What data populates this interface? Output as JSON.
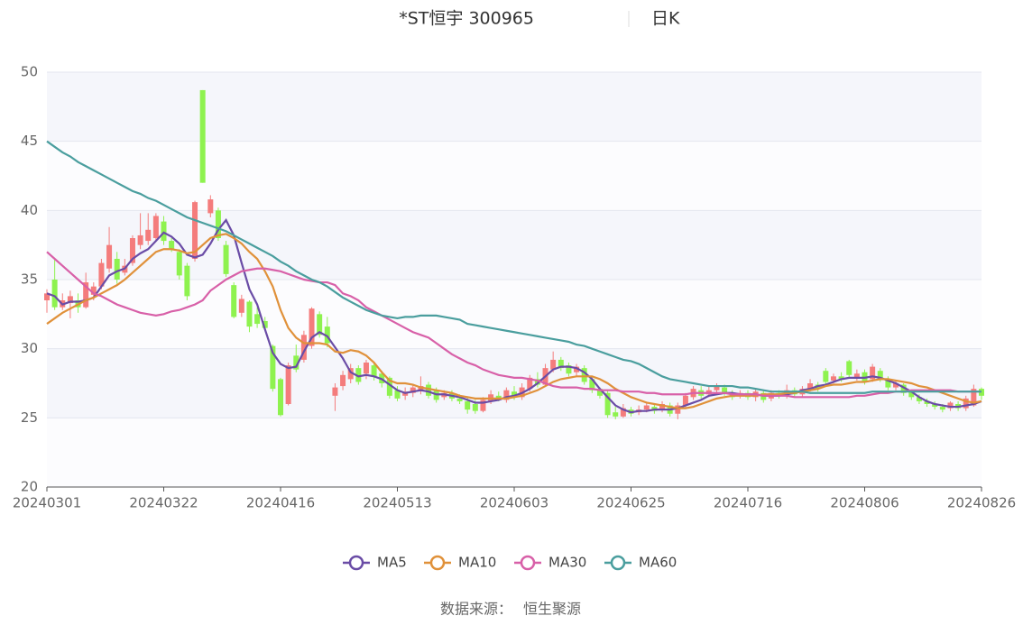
{
  "chart_data": {
    "type": "candlestick",
    "title": "*ST恒宇 300965",
    "period": "日K",
    "source_label": "数据来源：",
    "source": "恒生聚源",
    "categories": [
      "20240301",
      null,
      null,
      null,
      null,
      null,
      null,
      null,
      null,
      null,
      null,
      null,
      null,
      null,
      null,
      "20240322",
      null,
      null,
      null,
      null,
      null,
      null,
      null,
      null,
      null,
      null,
      null,
      null,
      null,
      null,
      "20240416",
      null,
      null,
      null,
      null,
      null,
      null,
      null,
      null,
      null,
      null,
      null,
      null,
      null,
      null,
      "20240513",
      null,
      null,
      null,
      null,
      null,
      null,
      null,
      null,
      null,
      null,
      null,
      null,
      null,
      null,
      "20240603",
      null,
      null,
      null,
      null,
      null,
      null,
      null,
      null,
      null,
      null,
      null,
      null,
      null,
      null,
      "20240625",
      null,
      null,
      null,
      null,
      null,
      null,
      null,
      null,
      null,
      null,
      null,
      null,
      null,
      null,
      "20240716",
      null,
      null,
      null,
      null,
      null,
      null,
      null,
      null,
      null,
      null,
      null,
      null,
      null,
      null,
      "20240806",
      null,
      null,
      null,
      null,
      null,
      null,
      null,
      null,
      null,
      null,
      null,
      null,
      null,
      null,
      "20240826"
    ],
    "open": [
      33.5,
      35.0,
      33.0,
      33.3,
      33.5,
      33.0,
      33.9,
      34.5,
      35.8,
      36.5,
      35.5,
      36.2,
      37.5,
      37.8,
      38.0,
      39.2,
      37.8,
      37.0,
      36.0,
      36.5,
      48.7,
      39.8,
      40.0,
      37.5,
      34.6,
      32.6,
      33.4,
      32.5,
      32.0,
      30.2,
      27.8,
      26.0,
      29.5,
      29.2,
      30.2,
      32.5,
      31.6,
      26.6,
      27.3,
      27.8,
      28.6,
      28.2,
      28.8,
      28.2,
      27.9,
      27.0,
      26.6,
      26.8,
      27.0,
      27.4,
      27.0,
      26.5,
      26.8,
      26.4,
      26.2,
      26.0,
      25.5,
      26.2,
      26.6,
      26.3,
      26.9,
      26.5,
      27.1,
      27.8,
      27.4,
      28.5,
      29.2,
      28.8,
      28.3,
      28.6,
      27.8,
      27.1,
      26.8,
      25.4,
      25.1,
      25.6,
      25.4,
      25.6,
      25.8,
      25.6,
      25.9,
      25.3,
      25.9,
      26.5,
      27.0,
      26.7,
      27.0,
      27.2,
      26.8,
      26.6,
      26.8,
      26.5,
      26.8,
      26.4,
      26.8,
      26.6,
      27.0,
      26.7,
      27.1,
      27.4,
      28.4,
      27.7,
      28.0,
      29.1,
      27.9,
      28.3,
      27.8,
      28.4,
      27.8,
      27.2,
      27.4,
      26.9,
      26.5,
      26.2,
      26.0,
      25.8,
      25.7,
      26.0,
      25.7,
      25.9,
      27.1
    ],
    "close": [
      34.0,
      33.0,
      33.5,
      33.8,
      33.0,
      34.8,
      34.5,
      36.2,
      37.5,
      35.0,
      36.0,
      38.0,
      38.2,
      38.6,
      39.6,
      37.8,
      37.2,
      35.3,
      33.8,
      40.6,
      42.0,
      40.8,
      38.0,
      35.4,
      32.3,
      33.6,
      31.6,
      31.8,
      31.5,
      27.1,
      25.2,
      28.8,
      28.5,
      31.0,
      32.9,
      31.0,
      30.4,
      27.2,
      28.1,
      28.6,
      27.6,
      29.0,
      28.0,
      27.5,
      26.6,
      26.4,
      26.9,
      27.2,
      27.3,
      26.6,
      26.3,
      26.8,
      26.4,
      26.2,
      25.6,
      25.5,
      26.3,
      26.7,
      26.4,
      27.0,
      26.5,
      27.2,
      27.9,
      27.4,
      28.6,
      29.2,
      28.6,
      28.2,
      28.7,
      27.6,
      27.0,
      26.6,
      25.2,
      25.1,
      25.7,
      25.3,
      25.6,
      25.9,
      25.5,
      26.0,
      25.3,
      25.9,
      26.6,
      27.1,
      26.6,
      27.0,
      27.3,
      26.8,
      26.5,
      26.8,
      26.5,
      26.9,
      26.3,
      26.8,
      26.6,
      27.0,
      26.7,
      27.1,
      27.5,
      27.1,
      27.6,
      28.0,
      27.8,
      28.1,
      28.2,
      27.6,
      28.7,
      27.8,
      27.2,
      27.5,
      26.8,
      26.5,
      26.2,
      26.0,
      25.8,
      25.6,
      26.1,
      25.7,
      26.4,
      27.1,
      26.6
    ],
    "low": [
      32.6,
      32.8,
      32.8,
      32.2,
      32.6,
      32.9,
      33.5,
      34.3,
      35.5,
      34.7,
      35.3,
      36.0,
      37.2,
      37.5,
      37.8,
      37.5,
      37.0,
      35.0,
      33.5,
      36.3,
      42.0,
      39.5,
      37.8,
      35.2,
      32.2,
      32.3,
      31.2,
      31.5,
      31.3,
      26.9,
      25.1,
      25.9,
      28.3,
      29.0,
      30.0,
      30.8,
      30.1,
      25.5,
      27.0,
      27.5,
      27.4,
      27.8,
      27.7,
      27.2,
      26.4,
      26.2,
      26.3,
      26.5,
      26.7,
      26.4,
      26.1,
      26.3,
      26.2,
      26.0,
      25.3,
      25.3,
      25.4,
      26.0,
      26.2,
      26.1,
      26.3,
      26.3,
      26.9,
      27.2,
      27.3,
      28.3,
      28.4,
      28.0,
      28.0,
      27.4,
      26.8,
      26.4,
      25.0,
      24.9,
      25.0,
      25.1,
      25.2,
      25.4,
      25.3,
      25.4,
      25.1,
      24.9,
      25.7,
      26.3,
      26.4,
      26.5,
      26.8,
      26.6,
      26.3,
      26.4,
      26.3,
      26.2,
      26.1,
      26.2,
      26.4,
      26.4,
      26.5,
      26.5,
      26.9,
      26.9,
      27.4,
      27.5,
      27.6,
      27.9,
      27.7,
      27.4,
      27.6,
      27.6,
      27.0,
      27.0,
      26.6,
      26.3,
      26.0,
      25.8,
      25.6,
      25.4,
      25.5,
      25.5,
      25.5,
      25.8,
      26.3
    ],
    "high": [
      34.3,
      36.5,
      34.0,
      34.2,
      34.0,
      35.5,
      34.8,
      36.5,
      38.8,
      37.0,
      36.5,
      38.2,
      39.8,
      39.8,
      39.8,
      39.6,
      38.0,
      37.2,
      36.2,
      40.7,
      48.7,
      41.1,
      40.2,
      37.8,
      34.8,
      33.9,
      33.5,
      33.0,
      32.3,
      30.3,
      27.9,
      29.0,
      30.3,
      31.3,
      33.0,
      32.7,
      32.3,
      27.5,
      28.4,
      28.9,
      28.8,
      29.2,
      29.0,
      28.4,
      28.0,
      27.3,
      27.2,
      27.4,
      28.0,
      27.6,
      27.2,
      27.0,
      27.0,
      26.7,
      26.5,
      26.3,
      26.5,
      27.0,
      26.9,
      27.2,
      27.3,
      27.5,
      28.1,
      28.3,
      28.9,
      29.8,
      29.4,
      29.0,
      28.9,
      28.8,
      28.0,
      27.2,
      27.0,
      25.8,
      26.0,
      25.8,
      25.9,
      26.1,
      26.0,
      26.2,
      26.1,
      26.1,
      26.8,
      27.3,
      27.3,
      27.3,
      27.5,
      27.4,
      27.0,
      27.0,
      27.0,
      27.1,
      27.0,
      27.0,
      27.0,
      27.4,
      27.2,
      27.3,
      27.8,
      27.6,
      28.6,
      28.2,
      28.3,
      29.2,
      28.5,
      28.5,
      28.9,
      28.6,
      28.0,
      27.7,
      27.5,
      27.0,
      26.7,
      26.4,
      26.2,
      26.0,
      26.2,
      26.2,
      26.6,
      27.4,
      27.2
    ],
    "up_color": "#f47c7c",
    "down_color": "#8ef24f",
    "series": [
      {
        "name": "MA5",
        "color": "#6a4ca6",
        "values": [
          34.0,
          33.8,
          33.2,
          33.4,
          33.4,
          33.5,
          33.7,
          34.5,
          35.3,
          35.6,
          35.8,
          36.5,
          36.9,
          37.2,
          37.8,
          38.4,
          38.1,
          37.6,
          36.8,
          36.6,
          36.8,
          37.6,
          38.6,
          39.3,
          38.2,
          36.2,
          34.3,
          33.2,
          31.4,
          29.7,
          28.9,
          28.6,
          28.7,
          29.8,
          30.8,
          31.2,
          30.9,
          30.1,
          29.3,
          28.3,
          28.0,
          28.1,
          28.0,
          27.8,
          27.4,
          27.0,
          26.8,
          26.9,
          27.0,
          26.9,
          26.7,
          26.7,
          26.6,
          26.5,
          26.3,
          26.1,
          26.1,
          26.2,
          26.3,
          26.5,
          26.6,
          26.8,
          27.1,
          27.5,
          28.0,
          28.5,
          28.7,
          28.7,
          28.6,
          28.3,
          27.8,
          27.1,
          26.5,
          25.9,
          25.6,
          25.4,
          25.5,
          25.5,
          25.6,
          25.6,
          25.6,
          25.7,
          25.9,
          26.1,
          26.3,
          26.6,
          26.7,
          26.8,
          26.8,
          26.7,
          26.7,
          26.7,
          26.6,
          26.6,
          26.6,
          26.7,
          26.8,
          27.0,
          27.1,
          27.3,
          27.4,
          27.6,
          27.8,
          27.9,
          27.9,
          27.9,
          28.0,
          27.9,
          27.7,
          27.5,
          27.2,
          26.9,
          26.5,
          26.2,
          26.0,
          25.9,
          25.8,
          25.8,
          25.9,
          26.0,
          26.2
        ]
      },
      {
        "name": "MA10",
        "color": "#e0913a",
        "values": [
          31.8,
          32.2,
          32.6,
          32.9,
          33.2,
          33.5,
          33.7,
          34.0,
          34.3,
          34.6,
          35.0,
          35.5,
          36.0,
          36.5,
          37.0,
          37.2,
          37.2,
          37.1,
          36.9,
          37.0,
          37.5,
          38.0,
          38.2,
          38.3,
          38.0,
          37.6,
          37.0,
          36.5,
          35.6,
          34.5,
          32.8,
          31.5,
          30.8,
          30.4,
          30.4,
          30.4,
          30.3,
          29.8,
          29.7,
          29.9,
          29.8,
          29.5,
          29.0,
          28.3,
          27.7,
          27.5,
          27.5,
          27.4,
          27.2,
          27.1,
          27.0,
          26.9,
          26.8,
          26.6,
          26.5,
          26.4,
          26.4,
          26.4,
          26.4,
          26.4,
          26.5,
          26.6,
          26.8,
          27.0,
          27.3,
          27.6,
          27.8,
          27.9,
          28.0,
          28.0,
          28.0,
          27.8,
          27.5,
          27.1,
          26.8,
          26.5,
          26.3,
          26.1,
          26.0,
          25.9,
          25.8,
          25.7,
          25.7,
          25.8,
          26.0,
          26.2,
          26.4,
          26.5,
          26.6,
          26.6,
          26.6,
          26.6,
          26.7,
          26.7,
          26.7,
          26.8,
          26.8,
          26.9,
          27.0,
          27.1,
          27.3,
          27.4,
          27.4,
          27.5,
          27.6,
          27.6,
          27.7,
          27.8,
          27.8,
          27.7,
          27.6,
          27.5,
          27.3,
          27.2,
          27.0,
          26.8,
          26.6,
          26.4,
          26.2,
          26.1,
          26.2
        ]
      },
      {
        "name": "MA30",
        "color": "#d860a8",
        "values": [
          37.0,
          36.5,
          36.0,
          35.5,
          35.0,
          34.5,
          34.0,
          33.8,
          33.5,
          33.2,
          33.0,
          32.8,
          32.6,
          32.5,
          32.4,
          32.5,
          32.7,
          32.8,
          33.0,
          33.2,
          33.5,
          34.2,
          34.6,
          35.0,
          35.3,
          35.6,
          35.7,
          35.8,
          35.8,
          35.7,
          35.6,
          35.4,
          35.2,
          35.0,
          34.9,
          34.8,
          34.8,
          34.6,
          34.0,
          33.8,
          33.5,
          33.0,
          32.7,
          32.4,
          32.1,
          31.8,
          31.5,
          31.2,
          31.0,
          30.8,
          30.4,
          30.0,
          29.6,
          29.3,
          29.0,
          28.8,
          28.5,
          28.3,
          28.1,
          28.0,
          27.9,
          27.9,
          27.8,
          27.7,
          27.5,
          27.3,
          27.2,
          27.2,
          27.2,
          27.1,
          27.1,
          27.0,
          27.0,
          27.0,
          26.9,
          26.9,
          26.9,
          26.8,
          26.8,
          26.7,
          26.7,
          26.7,
          26.7,
          26.8,
          26.8,
          26.8,
          26.8,
          26.8,
          26.7,
          26.7,
          26.7,
          26.7,
          26.6,
          26.6,
          26.6,
          26.6,
          26.5,
          26.5,
          26.5,
          26.5,
          26.5,
          26.5,
          26.5,
          26.5,
          26.6,
          26.6,
          26.7,
          26.8,
          26.8,
          26.9,
          26.9,
          27.0,
          27.0,
          27.0,
          27.0,
          27.0,
          27.0,
          26.9,
          26.9,
          26.9,
          26.9
        ]
      },
      {
        "name": "MA60",
        "color": "#4a9e9e",
        "values": [
          45.0,
          44.6,
          44.2,
          43.9,
          43.5,
          43.2,
          42.9,
          42.6,
          42.3,
          42.0,
          41.7,
          41.4,
          41.2,
          40.9,
          40.7,
          40.4,
          40.1,
          39.8,
          39.5,
          39.3,
          39.1,
          38.9,
          38.7,
          38.5,
          38.2,
          37.9,
          37.6,
          37.3,
          37.0,
          36.7,
          36.3,
          36.0,
          35.6,
          35.3,
          35.0,
          34.8,
          34.5,
          34.1,
          33.7,
          33.4,
          33.1,
          32.8,
          32.6,
          32.4,
          32.3,
          32.2,
          32.3,
          32.3,
          32.4,
          32.4,
          32.4,
          32.3,
          32.2,
          32.1,
          31.8,
          31.7,
          31.6,
          31.5,
          31.4,
          31.3,
          31.2,
          31.1,
          31.0,
          30.9,
          30.8,
          30.7,
          30.6,
          30.5,
          30.3,
          30.2,
          30.0,
          29.8,
          29.6,
          29.4,
          29.2,
          29.1,
          28.9,
          28.6,
          28.3,
          28.0,
          27.8,
          27.7,
          27.6,
          27.5,
          27.4,
          27.3,
          27.3,
          27.3,
          27.3,
          27.2,
          27.2,
          27.1,
          27.0,
          26.9,
          26.9,
          26.9,
          26.9,
          26.9,
          26.8,
          26.8,
          26.8,
          26.8,
          26.8,
          26.8,
          26.8,
          26.8,
          26.9,
          26.9,
          26.9,
          26.9,
          26.9,
          26.9,
          26.9,
          26.9,
          26.9,
          26.9,
          26.9,
          26.9,
          26.9,
          26.9,
          26.9
        ]
      }
    ],
    "ylim": [
      20,
      50
    ],
    "yticks": [
      20,
      25,
      30,
      35,
      40,
      45,
      50
    ],
    "grid": true
  }
}
